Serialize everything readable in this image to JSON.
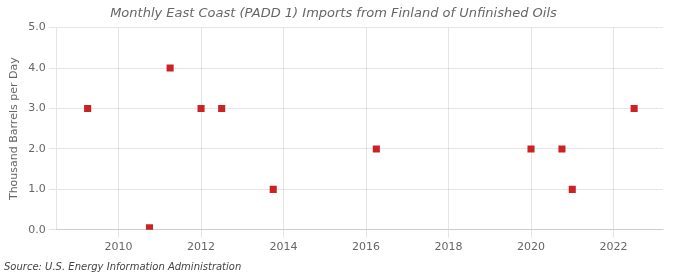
{
  "chart_data": {
    "type": "scatter",
    "title": "Monthly East Coast (PADD 1) Imports from Finland of Unfinished Oils",
    "y_label": "Thousand Barrels per Day",
    "annotations": [
      "Source: U.S. Energy Information Administration"
    ],
    "x": [
      2009.25,
      2010.75,
      2011.25,
      2012.0,
      2012.5,
      2013.75,
      2016.25,
      2020.0,
      2020.75,
      2021.0,
      2022.5
    ],
    "values": [
      3.0,
      0.05,
      4.0,
      3.0,
      3.0,
      1.0,
      2.0,
      2.0,
      2.0,
      1.0,
      3.0
    ],
    "color": "#cc2222",
    "marker": "square",
    "xlim": [
      2008.5,
      2023.2
    ],
    "ylim": [
      0.0,
      5.0
    ],
    "xticks": [
      2010,
      2012,
      2014,
      2016,
      2018,
      2020,
      2022
    ],
    "yticks": [
      {
        "value": 0.0,
        "label": "0.0"
      },
      {
        "value": 1.0,
        "label": "1.0"
      },
      {
        "value": 2.0,
        "label": "2.0"
      },
      {
        "value": 3.0,
        "label": "3.0"
      },
      {
        "value": 4.0,
        "label": "4.0"
      },
      {
        "value": 5.0,
        "label": "5.0"
      }
    ],
    "grid": true
  }
}
